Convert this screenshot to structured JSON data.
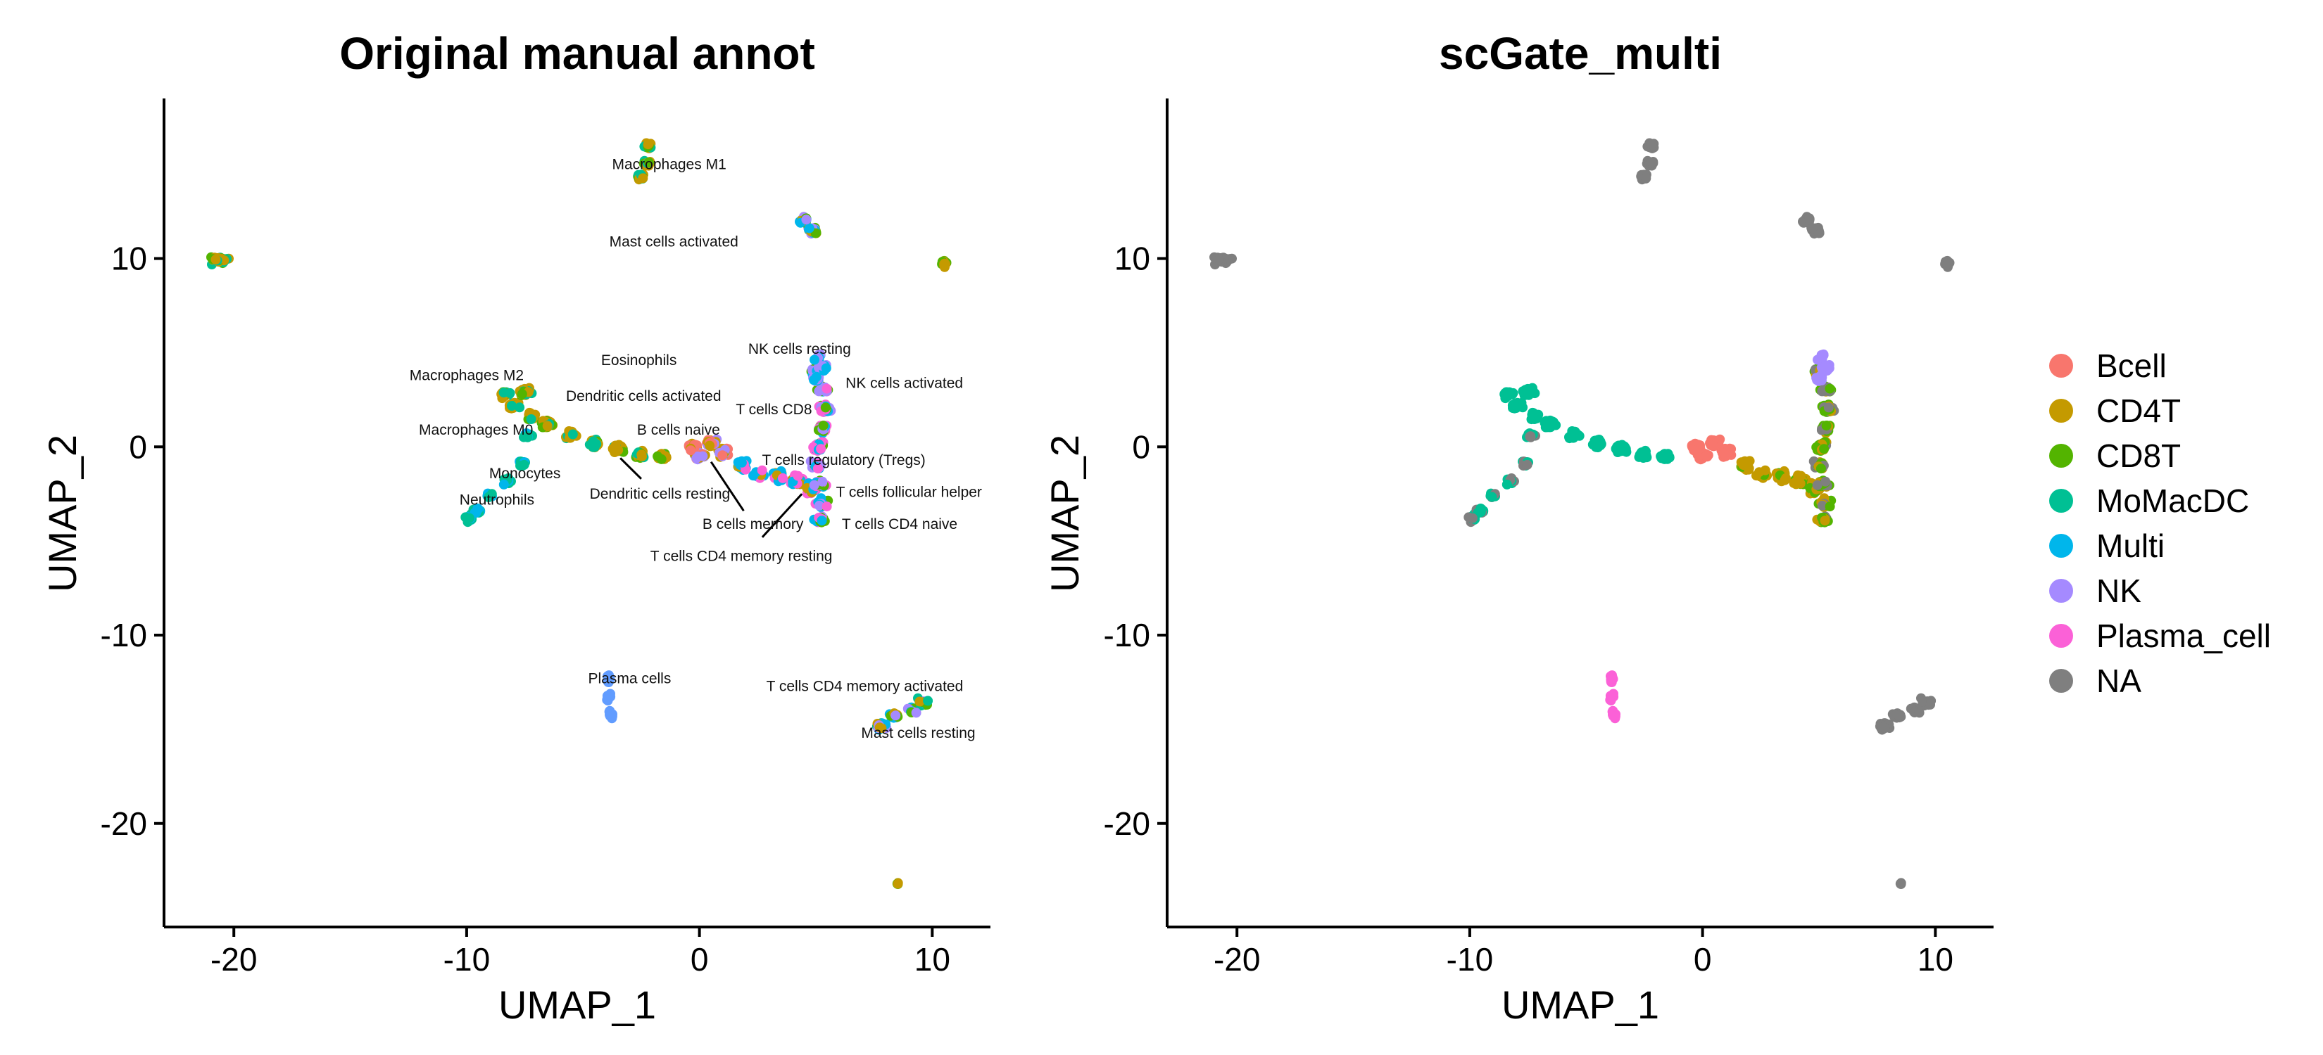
{
  "chart_data": [
    {
      "type": "scatter",
      "title": "Original manual annot",
      "xlabel": "UMAP_1",
      "ylabel": "UMAP_2",
      "xlim": [
        -23,
        12.5
      ],
      "ylim": [
        -25.5,
        18.5
      ],
      "xticks": [
        -20,
        -10,
        0,
        10
      ],
      "yticks": [
        -20,
        -10,
        0,
        10
      ],
      "xtick_labels": [
        "-20",
        "-10",
        "0",
        "10"
      ],
      "ytick_labels": [
        "-20",
        "-10",
        "0",
        "10"
      ],
      "grid": false,
      "legend": "none",
      "cluster_labels": [
        {
          "text": "Macrophages M1",
          "x": -1.3,
          "y": 15.0
        },
        {
          "text": "Mast cells activated",
          "x": -1.1,
          "y": 10.9
        },
        {
          "text": "NK cells resting",
          "x": 4.3,
          "y": 5.2
        },
        {
          "text": "Eosinophils",
          "x": -2.6,
          "y": 4.6
        },
        {
          "text": "Macrophages M2",
          "x": -10.0,
          "y": 3.8
        },
        {
          "text": "NK cells activated",
          "x": 8.8,
          "y": 3.4
        },
        {
          "text": "Dendritic cells activated",
          "x": -2.4,
          "y": 2.7
        },
        {
          "text": "T cells CD8",
          "x": 3.2,
          "y": 2.0
        },
        {
          "text": "Macrophages M0",
          "x": -9.6,
          "y": 0.9
        },
        {
          "text": "B cells naive",
          "x": -0.9,
          "y": 0.9
        },
        {
          "text": "T cells regulatory (Tregs)",
          "x": 6.2,
          "y": -0.7
        },
        {
          "text": "Monocytes",
          "x": -7.5,
          "y": -1.4
        },
        {
          "text": "Dendritic cells resting",
          "x": -1.7,
          "y": -2.5
        },
        {
          "text": "T cells follicular helper",
          "x": 9.0,
          "y": -2.4
        },
        {
          "text": "Neutrophils",
          "x": -8.7,
          "y": -2.8
        },
        {
          "text": "B cells memory",
          "x": 2.3,
          "y": -4.1
        },
        {
          "text": "T cells CD4 naive",
          "x": 8.6,
          "y": -4.1
        },
        {
          "text": "T cells CD4 memory resting",
          "x": 1.8,
          "y": -5.8
        },
        {
          "text": "Plasma cells",
          "x": -3.0,
          "y": -12.3
        },
        {
          "text": "T cells CD4 memory activated",
          "x": 7.1,
          "y": -12.7
        },
        {
          "text": "Mast cells resting",
          "x": 9.4,
          "y": -15.2
        }
      ],
      "leader_lines": [
        [
          -3.4,
          -0.6,
          -2.5,
          -1.7
        ],
        [
          0.5,
          -0.8,
          1.9,
          -3.4
        ],
        [
          4.4,
          -2.5,
          2.7,
          -4.8
        ]
      ]
    },
    {
      "type": "scatter",
      "title": "scGate_multi",
      "xlabel": "UMAP_1",
      "ylabel": "UMAP_2",
      "xlim": [
        -23,
        12.5
      ],
      "ylim": [
        -25.5,
        18.5
      ],
      "xticks": [
        -20,
        -10,
        0,
        10
      ],
      "yticks": [
        -20,
        -10,
        0,
        10
      ],
      "xtick_labels": [
        "-20",
        "-10",
        "0",
        "10"
      ],
      "ytick_labels": [
        "-20",
        "-10",
        "0",
        "10"
      ],
      "grid": false,
      "legend": "right",
      "series": [
        {
          "name": "Bcell",
          "color": "#F8766D"
        },
        {
          "name": "CD4T",
          "color": "#C49A00"
        },
        {
          "name": "CD8T",
          "color": "#53B400"
        },
        {
          "name": "MoMacDC",
          "color": "#00C094"
        },
        {
          "name": "Multi",
          "color": "#00B6EB"
        },
        {
          "name": "NK",
          "color": "#A58AFF"
        },
        {
          "name": "Plasma_cell",
          "color": "#FB61D7"
        },
        {
          "name": "NA",
          "color": "#7F7F7F"
        }
      ]
    }
  ]
}
